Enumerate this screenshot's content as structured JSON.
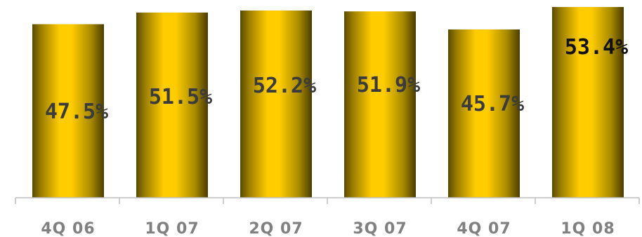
{
  "chart_data": {
    "type": "bar",
    "title": "",
    "xlabel": "",
    "ylabel": "",
    "categories": [
      "4Q 06",
      "1Q 07",
      "2Q 07",
      "3Q 07",
      "4Q 07",
      "1Q 08"
    ],
    "values": [
      47.5,
      51.5,
      52.2,
      51.9,
      45.7,
      53.4
    ],
    "data_labels": [
      "47.5%",
      "51.5%",
      "52.2%",
      "51.9%",
      "45.7%",
      "53.4%"
    ],
    "ylim": [
      0,
      55
    ],
    "grid": false,
    "legend": "none",
    "colors": {
      "bar_light": "#ffcc00",
      "bar_dark": "#5a4a00",
      "axis": "#bfbfbf",
      "value_label": "#3b3b3b",
      "highlight_label": "#111111",
      "tick_label": "#808080"
    },
    "highlight_index": 5
  }
}
